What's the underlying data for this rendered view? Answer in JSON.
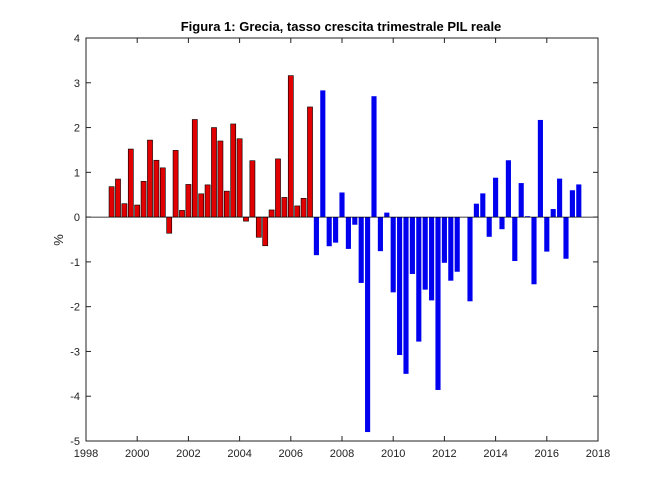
{
  "chart_data": {
    "type": "bar",
    "title": "Figura 1: Grecia, tasso crescita trimestrale PIL reale",
    "xlabel": "",
    "ylabel": "%",
    "xlim": [
      1998,
      2018
    ],
    "ylim": [
      -5,
      4
    ],
    "xticks": [
      1998,
      2000,
      2002,
      2004,
      2006,
      2008,
      2010,
      2012,
      2014,
      2016,
      2018
    ],
    "yticks": [
      -5,
      -4,
      -3,
      -2,
      -1,
      0,
      1,
      2,
      3,
      4
    ],
    "grid": false,
    "series": [
      {
        "color": "#e00000",
        "x": [
          1999.0,
          1999.25,
          1999.5,
          1999.75,
          2000.0,
          2000.25,
          2000.5,
          2000.75,
          2001.0,
          2001.25,
          2001.5,
          2001.75,
          2002.0,
          2002.25,
          2002.5,
          2002.75,
          2003.0,
          2003.25,
          2003.5,
          2003.75,
          2004.0,
          2004.25,
          2004.5,
          2004.75,
          2005.0,
          2005.25,
          2005.5,
          2005.75,
          2006.0,
          2006.25,
          2006.5,
          2006.75
        ],
        "values": [
          0.68,
          0.85,
          0.3,
          1.52,
          0.27,
          0.8,
          1.72,
          1.27,
          1.1,
          -0.36,
          1.49,
          0.15,
          0.73,
          2.18,
          0.52,
          0.72,
          2.0,
          1.7,
          0.58,
          2.08,
          1.75,
          -0.09,
          1.26,
          -0.45,
          -0.64,
          0.16,
          1.3,
          0.44,
          3.16,
          0.25,
          0.42,
          2.46
        ]
      },
      {
        "color": "#0000ee",
        "x": [
          2007.0,
          2007.25,
          2007.5,
          2007.75,
          2008.0,
          2008.25,
          2008.5,
          2008.75,
          2009.0,
          2009.25,
          2009.5,
          2009.75,
          2010.0,
          2010.25,
          2010.5,
          2010.75,
          2011.0,
          2011.25,
          2011.5,
          2011.75,
          2012.0,
          2012.25,
          2012.5,
          2012.75,
          2013.0,
          2013.25,
          2013.5,
          2013.75,
          2014.0,
          2014.25,
          2014.5,
          2014.75,
          2015.0,
          2015.25,
          2015.5,
          2015.75,
          2016.0,
          2016.25,
          2016.5,
          2016.75,
          2017.0,
          2017.25
        ],
        "values": [
          -0.85,
          2.83,
          -0.65,
          -0.57,
          0.55,
          -0.71,
          -0.17,
          -1.47,
          -4.8,
          2.7,
          -0.76,
          0.1,
          -1.68,
          -3.08,
          -3.5,
          -1.27,
          -2.78,
          -1.62,
          -1.86,
          -3.86,
          -1.02,
          -1.42,
          -1.22,
          0.0,
          -1.88,
          0.3,
          0.53,
          -0.44,
          0.88,
          -0.27,
          1.27,
          -0.98,
          0.76,
          0.02,
          -1.5,
          2.17,
          -0.77,
          0.18,
          0.86,
          -0.93,
          0.6,
          0.73
        ]
      }
    ]
  }
}
